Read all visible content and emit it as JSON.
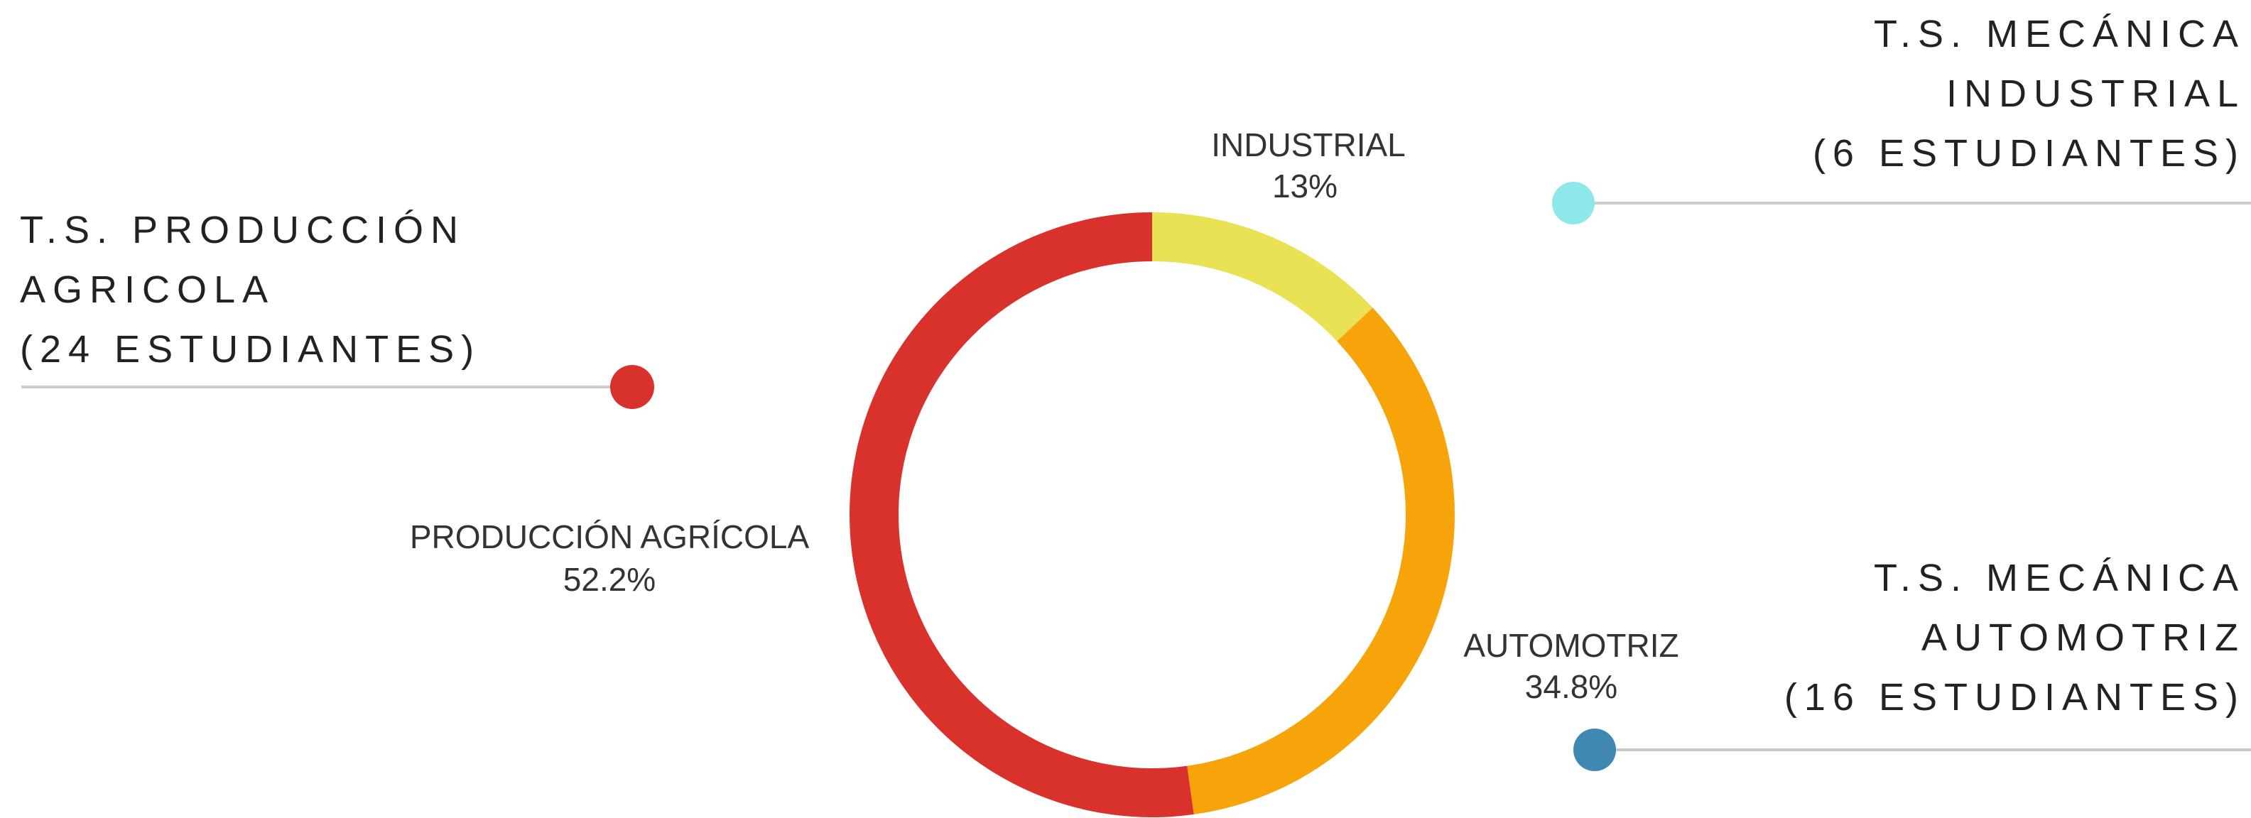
{
  "chart_data": {
    "type": "pie",
    "variant": "donut",
    "categories": [
      "INDUSTRIAL",
      "AUTOMOTRIZ",
      "PRODUCCIÓN AGRÍCOLA"
    ],
    "values": [
      13,
      34.8,
      52.2
    ],
    "value_labels": [
      "13%",
      "34.8%",
      "52.2%"
    ],
    "colors": [
      "#E8E254",
      "#F7A30A",
      "#D9312B"
    ],
    "grid": false
  },
  "callouts": [
    {
      "key": "industrial",
      "lines": [
        "T.S. MECÁNICA",
        "INDUSTRIAL",
        "(6 ESTUDIANTES)"
      ],
      "marker_color": "#8EE8EA"
    },
    {
      "key": "agricola",
      "lines": [
        "T.S. PRODUCCIÓN",
        "AGRICOLA",
        "(24 ESTUDIANTES)"
      ],
      "marker_color": "#D9312B"
    },
    {
      "key": "automotriz",
      "lines": [
        "T.S. MECÁNICA",
        "AUTOMOTRIZ",
        "(16 ESTUDIANTES)"
      ],
      "marker_color": "#3F88B2"
    }
  ],
  "colors": {
    "leader_line": "#CCCCCC",
    "text": "#222222",
    "label_text": "#333333"
  }
}
